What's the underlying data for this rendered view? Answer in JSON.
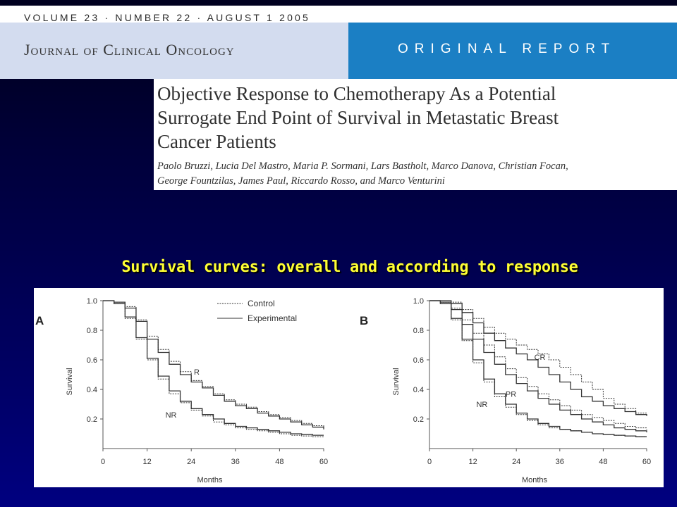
{
  "header": {
    "volume_line": "VOLUME 23 · NUMBER 22 · AUGUST 1 2005",
    "journal_name": "Journal of Clinical Oncology",
    "report_type": "ORIGINAL REPORT"
  },
  "article": {
    "title_lines": [
      "Objective Response to Chemotherapy As a Potential",
      "Surrogate End Point of Survival in Metastatic Breast",
      "Cancer Patients"
    ],
    "author_lines": [
      "Paolo Bruzzi, Lucia Del Mastro, Maria P. Sormani, Lars Bastholt, Marco Danova, Christian Focan,",
      "George Fountzilas, James Paul, Riccardo Rosso, and Marco Venturini"
    ]
  },
  "slide": {
    "heading": "Survival curves: overall and according to response"
  },
  "colors": {
    "background": "#000060",
    "heading": "#ffff33",
    "report_box": "#1b7fc4",
    "name_box": "#d3dcef"
  },
  "chart_data": [
    {
      "type": "line",
      "panel_label": "A",
      "xlabel": "Months",
      "ylabel": "Survival",
      "xlim": [
        0,
        60
      ],
      "ylim": [
        0,
        1.0
      ],
      "xticks": [
        "0",
        "12",
        "24",
        "36",
        "48",
        "60"
      ],
      "yticks": [
        "0.2",
        "0.4",
        "0.6",
        "0.8",
        "1.0"
      ],
      "legend": {
        "placement": "top-right",
        "entries": [
          {
            "label": "Control",
            "style": "dotted"
          },
          {
            "label": "Experimental",
            "style": "solid"
          }
        ]
      },
      "annotations": [
        {
          "text": "R",
          "x": 25.5,
          "y": 0.5
        },
        {
          "text": "NR",
          "x": 18.5,
          "y": 0.21
        }
      ],
      "series": [
        {
          "group": "R",
          "arm": "Control",
          "style": "dotted",
          "x": [
            3,
            6,
            9,
            12,
            15,
            18,
            21,
            24,
            27,
            30,
            33,
            36,
            39,
            42,
            45,
            48,
            51,
            54,
            57,
            60
          ],
          "y": [
            0.99,
            0.96,
            0.87,
            0.76,
            0.67,
            0.59,
            0.52,
            0.46,
            0.42,
            0.37,
            0.33,
            0.3,
            0.28,
            0.25,
            0.23,
            0.21,
            0.19,
            0.17,
            0.155,
            0.14
          ]
        },
        {
          "group": "R",
          "arm": "Experimental",
          "style": "solid",
          "x": [
            3,
            6,
            9,
            12,
            15,
            18,
            21,
            24,
            27,
            30,
            33,
            36,
            39,
            42,
            45,
            48,
            51,
            54,
            57,
            60
          ],
          "y": [
            0.99,
            0.95,
            0.86,
            0.74,
            0.65,
            0.57,
            0.5,
            0.45,
            0.41,
            0.36,
            0.32,
            0.29,
            0.27,
            0.24,
            0.22,
            0.2,
            0.18,
            0.16,
            0.145,
            0.13
          ]
        },
        {
          "group": "NR",
          "arm": "Control",
          "style": "dotted",
          "x": [
            3,
            6,
            9,
            12,
            15,
            18,
            21,
            24,
            27,
            30,
            33,
            36,
            39,
            42,
            45,
            48,
            51,
            54,
            57,
            60
          ],
          "y": [
            0.98,
            0.88,
            0.74,
            0.6,
            0.47,
            0.37,
            0.31,
            0.26,
            0.22,
            0.18,
            0.16,
            0.14,
            0.13,
            0.12,
            0.11,
            0.1,
            0.09,
            0.085,
            0.08,
            0.075
          ]
        },
        {
          "group": "NR",
          "arm": "Experimental",
          "style": "solid",
          "x": [
            3,
            6,
            9,
            12,
            15,
            18,
            21,
            24,
            27,
            30,
            33,
            36,
            39,
            42,
            45,
            48,
            51,
            54,
            57,
            60
          ],
          "y": [
            0.98,
            0.89,
            0.75,
            0.61,
            0.49,
            0.39,
            0.32,
            0.27,
            0.23,
            0.2,
            0.17,
            0.15,
            0.14,
            0.13,
            0.12,
            0.11,
            0.1,
            0.095,
            0.09,
            0.09
          ]
        }
      ]
    },
    {
      "type": "line",
      "panel_label": "B",
      "xlabel": "Months",
      "ylabel": "Survival",
      "xlim": [
        0,
        60
      ],
      "ylim": [
        0,
        1.0
      ],
      "xticks": [
        "0",
        "12",
        "24",
        "36",
        "48",
        "60"
      ],
      "yticks": [
        "0.2",
        "0.4",
        "0.6",
        "0.8",
        "1.0"
      ],
      "annotations": [
        {
          "text": "CR",
          "x": 30.5,
          "y": 0.6
        },
        {
          "text": "PR",
          "x": 22.5,
          "y": 0.35
        },
        {
          "text": "NR",
          "x": 14.5,
          "y": 0.28
        }
      ],
      "series": [
        {
          "group": "CR",
          "arm": "Control",
          "style": "dotted",
          "x": [
            3,
            6,
            9,
            12,
            15,
            18,
            21,
            24,
            27,
            30,
            33,
            36,
            39,
            42,
            45,
            48,
            51,
            54,
            57,
            60
          ],
          "y": [
            1.0,
            0.99,
            0.94,
            0.88,
            0.82,
            0.78,
            0.74,
            0.7,
            0.67,
            0.64,
            0.6,
            0.55,
            0.5,
            0.45,
            0.4,
            0.34,
            0.3,
            0.27,
            0.24,
            0.22
          ]
        },
        {
          "group": "CR",
          "arm": "Experimental",
          "style": "solid",
          "x": [
            3,
            6,
            9,
            12,
            15,
            18,
            21,
            24,
            27,
            30,
            33,
            36,
            39,
            42,
            45,
            48,
            51,
            54,
            57,
            60
          ],
          "y": [
            1.0,
            0.98,
            0.92,
            0.85,
            0.78,
            0.73,
            0.68,
            0.64,
            0.6,
            0.55,
            0.5,
            0.45,
            0.4,
            0.35,
            0.32,
            0.29,
            0.27,
            0.25,
            0.23,
            0.22
          ]
        },
        {
          "group": "PR",
          "arm": "Control",
          "style": "dotted",
          "x": [
            3,
            6,
            9,
            12,
            15,
            18,
            21,
            24,
            27,
            30,
            33,
            36,
            39,
            42,
            45,
            48,
            51,
            54,
            57,
            60
          ],
          "y": [
            0.99,
            0.95,
            0.87,
            0.78,
            0.7,
            0.62,
            0.54,
            0.48,
            0.42,
            0.37,
            0.33,
            0.29,
            0.26,
            0.23,
            0.21,
            0.19,
            0.17,
            0.15,
            0.14,
            0.13
          ]
        },
        {
          "group": "PR",
          "arm": "Experimental",
          "style": "solid",
          "x": [
            3,
            6,
            9,
            12,
            15,
            18,
            21,
            24,
            27,
            30,
            33,
            36,
            39,
            42,
            45,
            48,
            51,
            54,
            57,
            60
          ],
          "y": [
            0.99,
            0.94,
            0.84,
            0.74,
            0.65,
            0.57,
            0.5,
            0.44,
            0.39,
            0.34,
            0.3,
            0.26,
            0.23,
            0.2,
            0.18,
            0.16,
            0.14,
            0.13,
            0.12,
            0.11
          ]
        },
        {
          "group": "NR",
          "arm": "Control",
          "style": "dotted",
          "x": [
            3,
            6,
            9,
            12,
            15,
            18,
            21,
            24,
            27,
            30,
            33,
            36,
            39,
            42,
            45,
            48,
            51,
            54,
            57,
            60
          ],
          "y": [
            0.98,
            0.87,
            0.73,
            0.58,
            0.45,
            0.35,
            0.28,
            0.23,
            0.19,
            0.16,
            0.14,
            0.13,
            0.12,
            0.11,
            0.1,
            0.095,
            0.09,
            0.085,
            0.08,
            0.08
          ]
        },
        {
          "group": "NR",
          "arm": "Experimental",
          "style": "solid",
          "x": [
            3,
            6,
            9,
            12,
            15,
            18,
            21,
            24,
            27,
            30,
            33,
            36,
            39,
            42,
            45,
            48,
            51,
            54,
            57,
            60
          ],
          "y": [
            0.98,
            0.88,
            0.74,
            0.6,
            0.47,
            0.37,
            0.3,
            0.24,
            0.2,
            0.17,
            0.15,
            0.13,
            0.12,
            0.11,
            0.1,
            0.095,
            0.09,
            0.085,
            0.08,
            0.08
          ]
        }
      ]
    }
  ]
}
